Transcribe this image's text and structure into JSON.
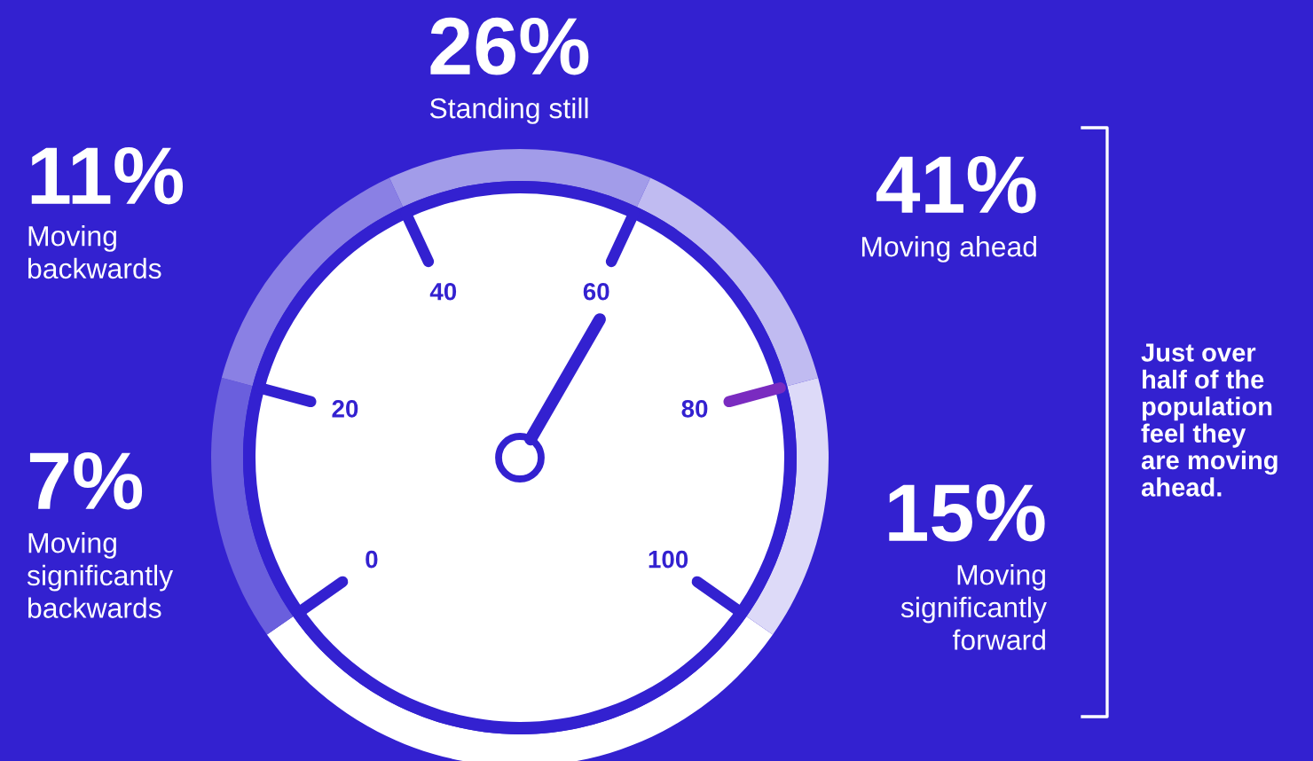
{
  "chart_data": {
    "type": "other",
    "categories": [
      "Moving\nsignificantly\nbackwards",
      "Moving\nbackwards",
      "Standing still",
      "Moving ahead",
      "Moving\nsignificantly\nforward"
    ],
    "values": [
      7,
      11,
      26,
      41,
      15
    ],
    "value_labels": [
      "7%",
      "11%",
      "26%",
      "41%",
      "15%"
    ],
    "colors": [
      "#6a5fdd",
      "#8a80e4",
      "#a29ce9",
      "#c0bbf1",
      "#dddaf8"
    ],
    "annotations": [
      "Just over\nhalf of the\npopulation\nfeel they\nare moving\nahead.",
      "0",
      "20",
      "40",
      "60",
      "80",
      "100"
    ]
  }
}
